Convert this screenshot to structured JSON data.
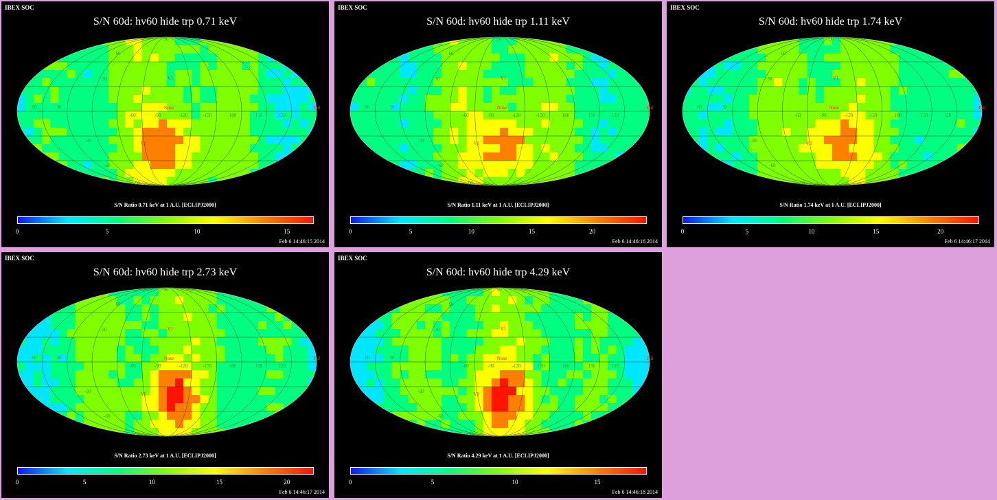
{
  "colors": {
    "background": "#dda0dd",
    "panel_bg": "#000000",
    "colormap": [
      "#1414ff",
      "#00e6ff",
      "#00ff80",
      "#80ff00",
      "#ffff00",
      "#ff8000",
      "#ff1400"
    ],
    "label_green": "#20a020",
    "label_red": "#ff2020"
  },
  "panels": [
    {
      "header": "IBEX SOC",
      "title": "S/N  60d: hv60 hide trp 0.71 keV",
      "colorbar_label": "S/N Ratio 0.71 keV at 1 A.U. [ECLIPJ2000]",
      "ticks": [
        "0",
        "5",
        "10",
        "15"
      ],
      "tick_values": [
        0,
        5,
        10,
        15
      ],
      "range_max": 16.5,
      "timestamp": "Feb  6 14:46:15 2014",
      "map_labels": {
        "v1": "V1",
        "v2": "V2",
        "nose": "Nose",
        "tail": "Tail",
        "lon_labels": [
          "60",
          "30",
          "-60",
          "-90",
          "-120",
          "-150",
          "180",
          "150",
          "120"
        ],
        "lat_labels": [
          "60",
          "30",
          "-30",
          "-60",
          "90",
          "-90"
        ]
      }
    },
    {
      "header": "IBEX SOC",
      "title": "S/N  60d: hv60 hide trp 1.11 keV",
      "colorbar_label": "S/N Ratio 1.11 keV at 1 A.U. [ECLIPJ2000]",
      "ticks": [
        "0",
        "5",
        "10",
        "15",
        "20"
      ],
      "tick_values": [
        0,
        5,
        10,
        15,
        20
      ],
      "range_max": 24.5,
      "timestamp": "Feb  6 14:46:16 2014",
      "map_labels": {
        "v1": "V1",
        "v2": "V2",
        "nose": "Nose",
        "tail": "Tail",
        "lon_labels": [
          "60",
          "30",
          "-60",
          "-90",
          "-120",
          "-150",
          "180",
          "150",
          "120"
        ],
        "lat_labels": [
          "60",
          "30",
          "-30",
          "-60",
          "90",
          "-90"
        ]
      }
    },
    {
      "header": "IBEX SOC",
      "title": "S/N  60d: hv60 hide trp 1.74 keV",
      "colorbar_label": "S/N Ratio 1.74 keV at 1 A.U. [ECLIPJ2000]",
      "ticks": [
        "0",
        "5",
        "10",
        "15",
        "20"
      ],
      "tick_values": [
        0,
        5,
        10,
        15,
        20
      ],
      "range_max": 23,
      "timestamp": "Feb  6 14:46:17 2014",
      "map_labels": {
        "v1": "V1",
        "v2": "V2",
        "nose": "Nose",
        "tail": "Tail",
        "lon_labels": [
          "60",
          "30",
          "-60",
          "-90",
          "-120",
          "-150",
          "180",
          "150",
          "120"
        ],
        "lat_labels": [
          "60",
          "30",
          "-30",
          "-60",
          "90",
          "-90"
        ]
      }
    },
    {
      "header": "IBEX SOC",
      "title": "S/N  60d: hv60 hide trp 2.73 keV",
      "colorbar_label": "S/N Ratio 2.73 keV at 1 A.U. [ECLIPJ2000]",
      "ticks": [
        "0",
        "5",
        "10",
        "15",
        "20"
      ],
      "tick_values": [
        0,
        5,
        10,
        15,
        20
      ],
      "range_max": 22,
      "timestamp": "Feb  6 14:46:17 2014",
      "map_labels": {
        "v1": "V1",
        "v2": "V2",
        "nose": "Nose",
        "tail": "Tail",
        "lon_labels": [
          "60",
          "30",
          "-60",
          "-90",
          "-120",
          "-150",
          "180",
          "150",
          "120"
        ],
        "lat_labels": [
          "60",
          "30",
          "-30",
          "-60",
          "90",
          "-90"
        ]
      }
    },
    {
      "header": "IBEX SOC",
      "title": "S/N  60d: hv60 hide trp 4.29 keV",
      "colorbar_label": "S/N Ratio 4.29 keV at 1 A.U. [ECLIPJ2000]",
      "ticks": [
        "0",
        "5",
        "10",
        "15"
      ],
      "tick_values": [
        0,
        5,
        10,
        15
      ],
      "range_max": 18,
      "timestamp": "Feb  6 14:46:18 2014",
      "map_labels": {
        "v1": "V1",
        "v2": "V2",
        "nose": "Nose",
        "tail": "Tail",
        "lon_labels": [
          "60",
          "30",
          "-60",
          "-90",
          "-120",
          "-150",
          "180",
          "150",
          "120"
        ],
        "lat_labels": [
          "60",
          "30",
          "-30",
          "-60",
          "90",
          "-90"
        ]
      }
    }
  ]
}
